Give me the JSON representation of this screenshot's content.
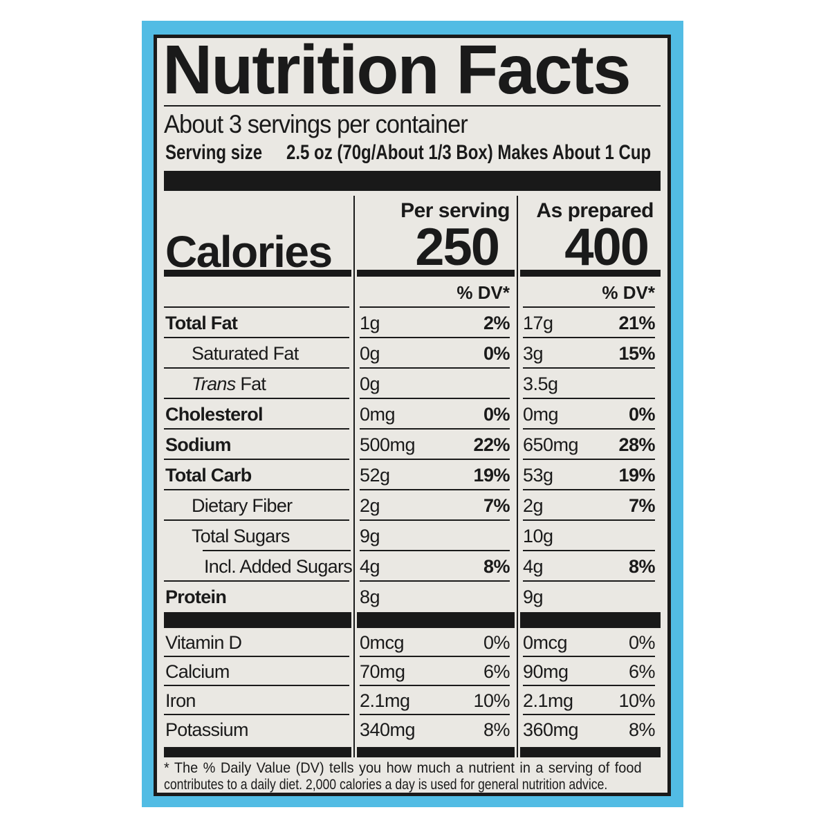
{
  "colors": {
    "backdrop": "#ffffff",
    "box_blue": "#52bce4",
    "paper": "#eae8e3",
    "ink": "#1a1a1a",
    "bar": "#191919"
  },
  "label": {
    "title": "Nutrition Facts",
    "servings_per_container": "About 3 servings per container",
    "serving_size": {
      "label": "Serving size",
      "value": "2.5 oz (70g/About 1/3 Box) Makes About 1 Cup"
    },
    "calories": {
      "label": "Calories",
      "columns": [
        {
          "header": "Per serving",
          "value": "250"
        },
        {
          "header": "As prepared",
          "value": "400"
        }
      ],
      "dv_header": "% DV*"
    },
    "nutrients": [
      {
        "name": "Total Fat",
        "bold": true,
        "indent": 0,
        "per_serving": {
          "amount": "1g",
          "dv": "2%"
        },
        "as_prepared": {
          "amount": "17g",
          "dv": "21%"
        }
      },
      {
        "name": "Saturated Fat",
        "bold": false,
        "indent": 1,
        "per_serving": {
          "amount": "0g",
          "dv": "0%"
        },
        "as_prepared": {
          "amount": "3g",
          "dv": "15%"
        }
      },
      {
        "name": "Trans Fat",
        "italic_word": "Trans",
        "bold": false,
        "indent": 1,
        "per_serving": {
          "amount": "0g",
          "dv": ""
        },
        "as_prepared": {
          "amount": "3.5g",
          "dv": ""
        }
      },
      {
        "name": "Cholesterol",
        "bold": true,
        "indent": 0,
        "per_serving": {
          "amount": "0mg",
          "dv": "0%"
        },
        "as_prepared": {
          "amount": "0mg",
          "dv": "0%"
        }
      },
      {
        "name": "Sodium",
        "bold": true,
        "indent": 0,
        "per_serving": {
          "amount": "500mg",
          "dv": "22%"
        },
        "as_prepared": {
          "amount": "650mg",
          "dv": "28%"
        }
      },
      {
        "name": "Total Carb",
        "bold": true,
        "indent": 0,
        "per_serving": {
          "amount": "52g",
          "dv": "19%"
        },
        "as_prepared": {
          "amount": "53g",
          "dv": "19%"
        }
      },
      {
        "name": "Dietary Fiber",
        "bold": false,
        "indent": 1,
        "per_serving": {
          "amount": "2g",
          "dv": "7%"
        },
        "as_prepared": {
          "amount": "2g",
          "dv": "7%"
        }
      },
      {
        "name": "Total Sugars",
        "bold": false,
        "indent": 1,
        "rule_indent": true,
        "per_serving": {
          "amount": "9g",
          "dv": ""
        },
        "as_prepared": {
          "amount": "10g",
          "dv": ""
        }
      },
      {
        "name": "Incl. Added Sugars",
        "bold": false,
        "indent": 2,
        "per_serving": {
          "amount": "4g",
          "dv": "8%"
        },
        "as_prepared": {
          "amount": "4g",
          "dv": "8%"
        }
      },
      {
        "name": "Protein",
        "bold": true,
        "indent": 0,
        "last": true,
        "per_serving": {
          "amount": "8g",
          "dv": ""
        },
        "as_prepared": {
          "amount": "9g",
          "dv": ""
        }
      }
    ],
    "micronutrients": [
      {
        "name": "Vitamin D",
        "per_serving": {
          "amount": "0mcg",
          "dv": "0%"
        },
        "as_prepared": {
          "amount": "0mcg",
          "dv": "0%"
        }
      },
      {
        "name": "Calcium",
        "per_serving": {
          "amount": "70mg",
          "dv": "6%"
        },
        "as_prepared": {
          "amount": "90mg",
          "dv": "6%"
        }
      },
      {
        "name": "Iron",
        "per_serving": {
          "amount": "2.1mg",
          "dv": "10%"
        },
        "as_prepared": {
          "amount": "2.1mg",
          "dv": "10%"
        }
      },
      {
        "name": "Potassium",
        "last": true,
        "per_serving": {
          "amount": "340mg",
          "dv": "8%"
        },
        "as_prepared": {
          "amount": "360mg",
          "dv": "8%"
        }
      }
    ],
    "footnote": {
      "line1": "* The % Daily Value (DV) tells you how much a nutrient in a serving of food",
      "line2": "contributes to a daily diet. 2,000 calories a day is used for general nutrition advice."
    }
  }
}
